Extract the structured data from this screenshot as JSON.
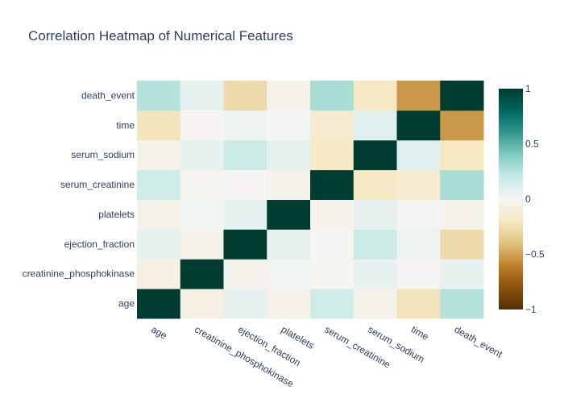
{
  "chart_data": {
    "type": "heatmap",
    "title": "Correlation Heatmap of Numerical Features",
    "x": [
      "age",
      "creatinine_phosphokinase",
      "ejection_fraction",
      "platelets",
      "serum_creatinine",
      "serum_sodium",
      "time",
      "death_event"
    ],
    "y": [
      "age",
      "creatinine_phosphokinase",
      "ejection_fraction",
      "platelets",
      "serum_creatinine",
      "serum_sodium",
      "time",
      "death_event"
    ],
    "z": [
      [
        1.0,
        -0.08,
        0.06,
        -0.05,
        0.16,
        -0.05,
        -0.22,
        0.25
      ],
      [
        -0.08,
        1.0,
        -0.04,
        0.02,
        -0.02,
        0.06,
        -0.01,
        0.06
      ],
      [
        0.06,
        -0.04,
        1.0,
        0.07,
        -0.01,
        0.18,
        0.04,
        -0.27
      ],
      [
        -0.05,
        0.02,
        0.07,
        1.0,
        -0.04,
        0.06,
        0.01,
        -0.05
      ],
      [
        0.16,
        -0.02,
        -0.01,
        -0.04,
        1.0,
        -0.19,
        -0.15,
        0.29
      ],
      [
        -0.05,
        0.06,
        0.18,
        0.06,
        -0.19,
        1.0,
        0.09,
        -0.2
      ],
      [
        -0.22,
        -0.01,
        0.04,
        0.01,
        -0.15,
        0.09,
        1.0,
        -0.53
      ],
      [
        0.25,
        0.06,
        -0.27,
        -0.05,
        0.29,
        -0.2,
        -0.53,
        1.0
      ]
    ],
    "zmin": -1,
    "zmax": 1,
    "colorscale": "BrBG",
    "colorbar_ticks": [
      "1",
      "0.5",
      "0",
      "−0.5",
      "−1"
    ],
    "colorbar_tick_values": [
      1,
      0.5,
      0,
      -0.5,
      -1
    ]
  }
}
